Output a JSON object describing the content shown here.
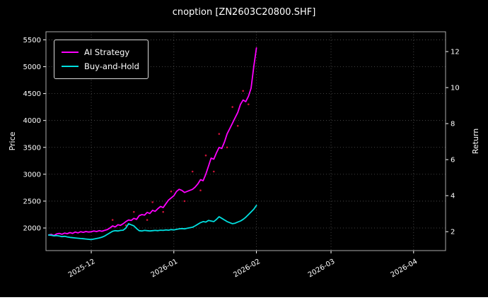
{
  "chart_data": {
    "type": "line",
    "title": "cnoption [ZN2603C20800.SHF]",
    "ylabel_left": "Price",
    "ylabel_right": "Return",
    "grid": true,
    "legend_position": "upper-left",
    "colors": {
      "background": "#000000",
      "text": "#ffffff",
      "grid": "#555555",
      "spine": "#aaaaaa"
    },
    "x_axis": {
      "range_days": [
        0,
        150
      ],
      "ticks": [
        {
          "day": 17,
          "label": "2025-12"
        },
        {
          "day": 48,
          "label": "2026-01"
        },
        {
          "day": 79,
          "label": "2026-02"
        },
        {
          "day": 107,
          "label": "2026-03"
        },
        {
          "day": 138,
          "label": "2026-04"
        }
      ]
    },
    "y_left": {
      "range": [
        1580,
        5650
      ],
      "ticks": [
        2000,
        2500,
        3000,
        3500,
        4000,
        4500,
        5000,
        5500
      ]
    },
    "y_right": {
      "range": [
        0.95,
        13.1
      ],
      "ticks": [
        2,
        4,
        6,
        8,
        10,
        12
      ]
    },
    "series": [
      {
        "name": "AI Strategy",
        "color": "#ff00ff",
        "axis": "left",
        "points": [
          [
            1,
            1870
          ],
          [
            2,
            1880
          ],
          [
            3,
            1860
          ],
          [
            4,
            1890
          ],
          [
            5,
            1900
          ],
          [
            6,
            1885
          ],
          [
            7,
            1905
          ],
          [
            8,
            1895
          ],
          [
            9,
            1915
          ],
          [
            10,
            1900
          ],
          [
            11,
            1925
          ],
          [
            12,
            1910
          ],
          [
            13,
            1930
          ],
          [
            14,
            1920
          ],
          [
            15,
            1935
          ],
          [
            16,
            1925
          ],
          [
            17,
            1930
          ],
          [
            18,
            1945
          ],
          [
            19,
            1935
          ],
          [
            20,
            1950
          ],
          [
            21,
            1940
          ],
          [
            22,
            1955
          ],
          [
            23,
            1970
          ],
          [
            24,
            2000
          ],
          [
            25,
            2040
          ],
          [
            26,
            2020
          ],
          [
            27,
            2060
          ],
          [
            28,
            2050
          ],
          [
            29,
            2080
          ],
          [
            30,
            2120
          ],
          [
            31,
            2150
          ],
          [
            32,
            2140
          ],
          [
            33,
            2180
          ],
          [
            34,
            2160
          ],
          [
            35,
            2230
          ],
          [
            36,
            2250
          ],
          [
            37,
            2240
          ],
          [
            38,
            2290
          ],
          [
            39,
            2270
          ],
          [
            40,
            2330
          ],
          [
            41,
            2310
          ],
          [
            42,
            2360
          ],
          [
            43,
            2400
          ],
          [
            44,
            2380
          ],
          [
            45,
            2450
          ],
          [
            46,
            2520
          ],
          [
            47,
            2560
          ],
          [
            48,
            2600
          ],
          [
            49,
            2680
          ],
          [
            50,
            2720
          ],
          [
            51,
            2700
          ],
          [
            52,
            2660
          ],
          [
            53,
            2680
          ],
          [
            54,
            2700
          ],
          [
            55,
            2720
          ],
          [
            56,
            2760
          ],
          [
            57,
            2820
          ],
          [
            58,
            2900
          ],
          [
            59,
            2880
          ],
          [
            60,
            3000
          ],
          [
            61,
            3150
          ],
          [
            62,
            3300
          ],
          [
            63,
            3280
          ],
          [
            64,
            3400
          ],
          [
            65,
            3500
          ],
          [
            66,
            3480
          ],
          [
            67,
            3600
          ],
          [
            68,
            3750
          ],
          [
            69,
            3850
          ],
          [
            70,
            3950
          ],
          [
            71,
            4050
          ],
          [
            72,
            4150
          ],
          [
            73,
            4300
          ],
          [
            74,
            4380
          ],
          [
            75,
            4350
          ],
          [
            76,
            4450
          ],
          [
            77,
            4600
          ],
          [
            78,
            5000
          ],
          [
            79,
            5350
          ]
        ]
      },
      {
        "name": "Buy-and-Hold",
        "color": "#00e0e0",
        "axis": "left",
        "points": [
          [
            1,
            1870
          ],
          [
            2,
            1865
          ],
          [
            3,
            1855
          ],
          [
            4,
            1860
          ],
          [
            5,
            1850
          ],
          [
            6,
            1840
          ],
          [
            7,
            1845
          ],
          [
            8,
            1835
          ],
          [
            9,
            1825
          ],
          [
            10,
            1820
          ],
          [
            11,
            1815
          ],
          [
            12,
            1810
          ],
          [
            13,
            1805
          ],
          [
            14,
            1800
          ],
          [
            15,
            1795
          ],
          [
            16,
            1790
          ],
          [
            17,
            1785
          ],
          [
            18,
            1795
          ],
          [
            19,
            1805
          ],
          [
            20,
            1815
          ],
          [
            21,
            1830
          ],
          [
            22,
            1850
          ],
          [
            23,
            1880
          ],
          [
            24,
            1910
          ],
          [
            25,
            1940
          ],
          [
            26,
            1950
          ],
          [
            27,
            1945
          ],
          [
            28,
            1955
          ],
          [
            29,
            1960
          ],
          [
            30,
            2000
          ],
          [
            31,
            2080
          ],
          [
            32,
            2060
          ],
          [
            33,
            2040
          ],
          [
            34,
            1990
          ],
          [
            35,
            1950
          ],
          [
            36,
            1945
          ],
          [
            37,
            1955
          ],
          [
            38,
            1950
          ],
          [
            39,
            1945
          ],
          [
            40,
            1950
          ],
          [
            41,
            1955
          ],
          [
            42,
            1950
          ],
          [
            43,
            1960
          ],
          [
            44,
            1955
          ],
          [
            45,
            1965
          ],
          [
            46,
            1960
          ],
          [
            47,
            1970
          ],
          [
            48,
            1965
          ],
          [
            49,
            1975
          ],
          [
            50,
            1985
          ],
          [
            51,
            1990
          ],
          [
            52,
            1985
          ],
          [
            53,
            1995
          ],
          [
            54,
            2005
          ],
          [
            55,
            2015
          ],
          [
            56,
            2040
          ],
          [
            57,
            2070
          ],
          [
            58,
            2100
          ],
          [
            59,
            2120
          ],
          [
            60,
            2110
          ],
          [
            61,
            2140
          ],
          [
            62,
            2130
          ],
          [
            63,
            2120
          ],
          [
            64,
            2160
          ],
          [
            65,
            2210
          ],
          [
            66,
            2180
          ],
          [
            67,
            2150
          ],
          [
            68,
            2120
          ],
          [
            69,
            2100
          ],
          [
            70,
            2080
          ],
          [
            71,
            2090
          ],
          [
            72,
            2110
          ],
          [
            73,
            2130
          ],
          [
            74,
            2160
          ],
          [
            75,
            2200
          ],
          [
            76,
            2250
          ],
          [
            77,
            2300
          ],
          [
            78,
            2350
          ],
          [
            79,
            2420
          ]
        ]
      }
    ],
    "markers": {
      "name": "signal-dots",
      "color": "#dc143c",
      "points": [
        [
          25,
          2150
        ],
        [
          30,
          2050
        ],
        [
          33,
          2300
        ],
        [
          38,
          2150
        ],
        [
          40,
          2480
        ],
        [
          44,
          2300
        ],
        [
          47,
          2680
        ],
        [
          52,
          2500
        ],
        [
          55,
          3050
        ],
        [
          58,
          2700
        ],
        [
          60,
          3350
        ],
        [
          63,
          3050
        ],
        [
          65,
          3750
        ],
        [
          68,
          3500
        ],
        [
          70,
          4250
        ],
        [
          72,
          3900
        ],
        [
          74,
          4550
        ],
        [
          76,
          4300
        ]
      ]
    }
  }
}
